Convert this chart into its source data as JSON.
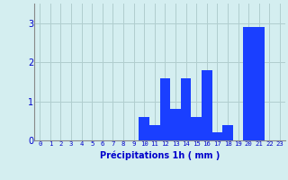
{
  "hours": [
    0,
    1,
    2,
    3,
    4,
    5,
    6,
    7,
    8,
    9,
    10,
    11,
    12,
    13,
    14,
    15,
    16,
    17,
    18,
    19,
    20,
    21,
    22,
    23
  ],
  "values": [
    0,
    0,
    0,
    0,
    0,
    0,
    0,
    0,
    0,
    0,
    0.6,
    0.4,
    1.6,
    0.8,
    1.6,
    0.6,
    1.8,
    0.2,
    0.4,
    0,
    2.9,
    2.9,
    0,
    0
  ],
  "bar_color": "#1a3fff",
  "background_color": "#d4eef0",
  "grid_color": "#b0cece",
  "xlabel": "Précipitations 1h ( mm )",
  "xlabel_color": "#0000cc",
  "tick_color": "#0000cc",
  "ylim": [
    0,
    3.5
  ],
  "yticks": [
    0,
    1,
    2,
    3
  ],
  "bar_width": 1.0
}
